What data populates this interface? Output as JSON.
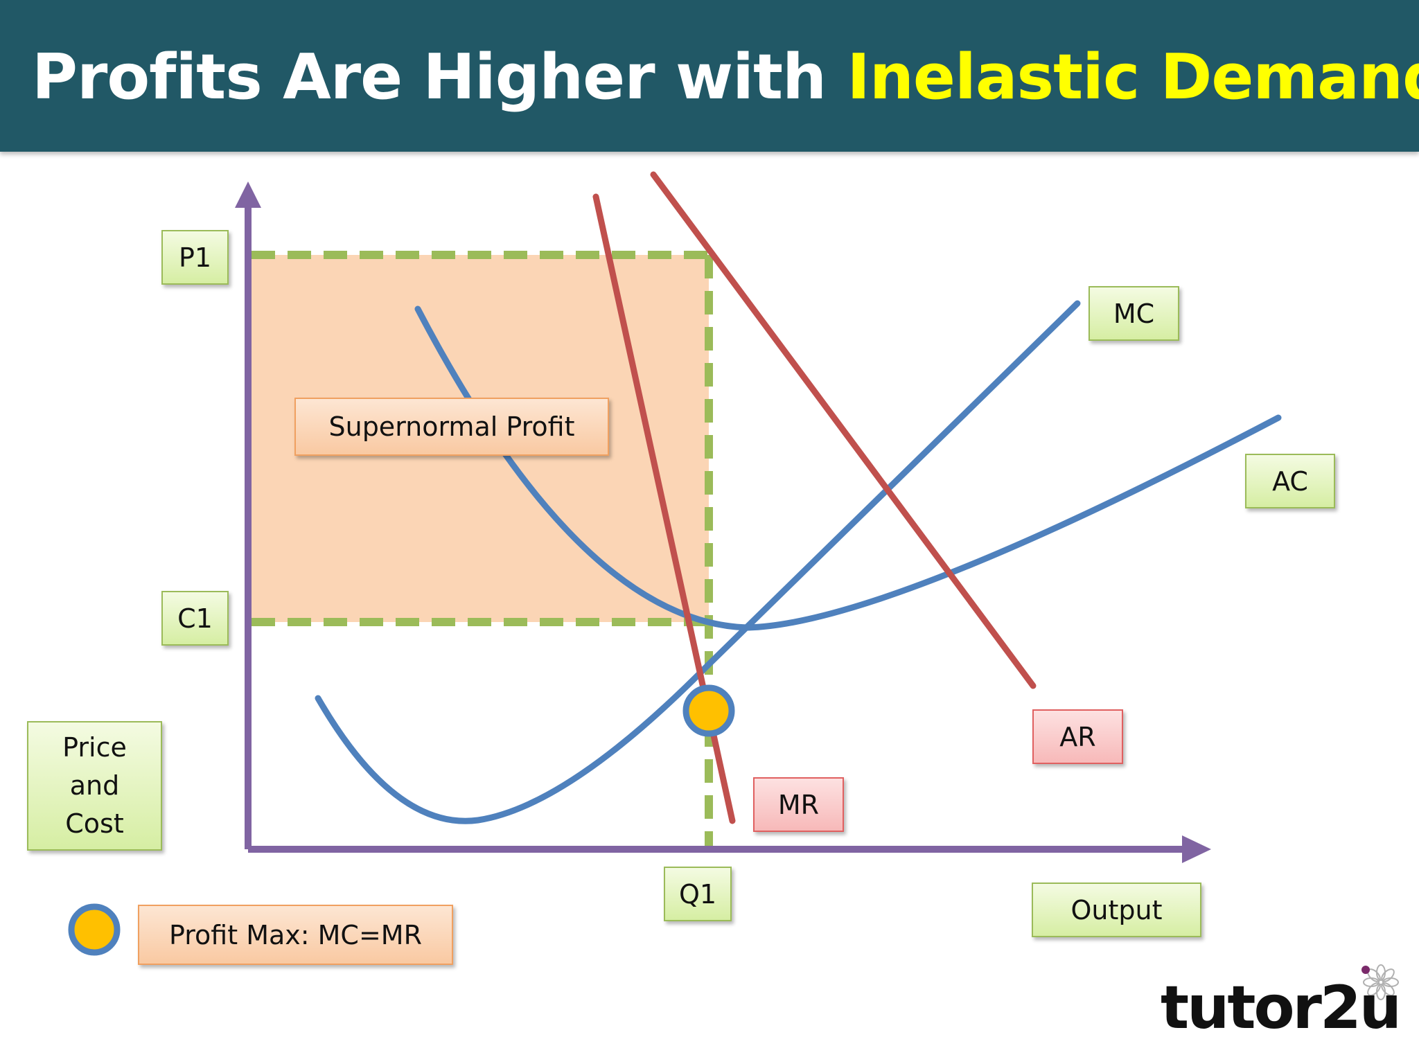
{
  "title": {
    "main": "Profits Are Higher with ",
    "highlight": "Inelastic Demand",
    "highlight_color": "#ffff00",
    "bar_color": "#215866"
  },
  "axes": {
    "y_label": "Price\nand\nCost",
    "x_label": "Output"
  },
  "levels": {
    "price": "P1",
    "cost": "C1",
    "quantity": "Q1"
  },
  "curves": {
    "mc": "MC",
    "ac": "AC",
    "ar": "AR",
    "mr": "MR",
    "cost_curve_color": "#4f81bd",
    "revenue_curve_color": "#c0504d",
    "axis_color": "#8064a2",
    "guide_color": "#9bbb59"
  },
  "region": {
    "label": "Supernormal Profit",
    "fill_color": "#fbd5b5"
  },
  "legend": {
    "profit_max": "Profit Max: MC=MR",
    "marker_fill": "#ffc000",
    "marker_stroke": "#4f81bd"
  },
  "logo": {
    "text": "tutor2u"
  }
}
